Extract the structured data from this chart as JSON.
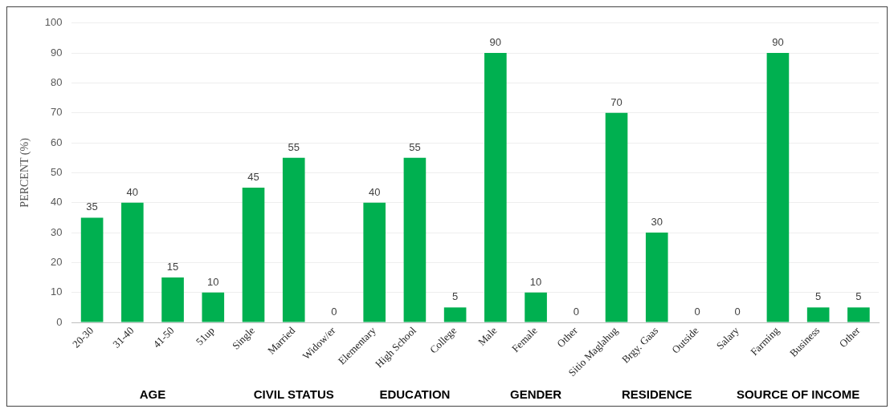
{
  "chart_data": {
    "type": "bar",
    "ylabel": "PERCENT (%)",
    "categories": [
      "20-30",
      "31-40",
      "41-50",
      "51up",
      "Single",
      "Married",
      "Widow/er",
      "Elementary",
      "High School",
      "College",
      "Male",
      "Female",
      "Other",
      "Sitio Maglahug",
      "Brgy. Gaas",
      "Outside",
      "Salary",
      "Farming",
      "Business",
      "Other"
    ],
    "values": [
      35,
      40,
      15,
      10,
      45,
      55,
      0,
      40,
      55,
      5,
      90,
      10,
      0,
      70,
      30,
      0,
      0,
      90,
      5,
      5
    ],
    "color": "#00b050",
    "ylim": [
      0,
      100
    ],
    "yticks": [
      0,
      10,
      20,
      30,
      40,
      50,
      60,
      70,
      80,
      90,
      100
    ],
    "grid": "y",
    "data_labels": true,
    "annotations": [
      "AGE",
      "CIVIL STATUS",
      "EDUCATION",
      "GENDER",
      "RESIDENCE",
      "SOURCE OF INCOME"
    ]
  }
}
